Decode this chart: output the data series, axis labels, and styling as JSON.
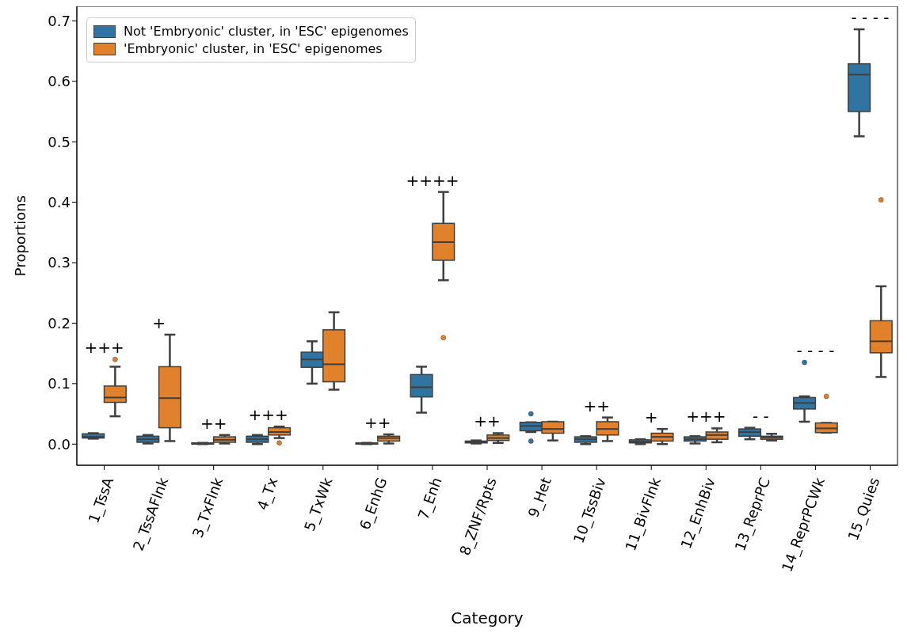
{
  "chart_data": {
    "type": "box",
    "xlabel": "Category",
    "ylabel": "Proportions",
    "categories": [
      "1_TssA",
      "2_TssAFlnk",
      "3_TxFlnk",
      "4_Tx",
      "5_TxWk",
      "6_EnhG",
      "7_Enh",
      "8_ZNF/Rpts",
      "9_Het",
      "10_TssBiv",
      "11_BivFlnk",
      "12_EnhBiv",
      "13_ReprPC",
      "14_ReprPCWk",
      "15_Quies"
    ],
    "ylim": [
      -0.035,
      0.724
    ],
    "yticks": [
      {
        "value": 0,
        "label": "0.0"
      },
      0.1,
      0.2,
      0.3,
      0.4,
      0.5,
      0.6,
      0.7
    ],
    "legend": "top left",
    "series": [
      {
        "name": "Not 'Embryonic' cluster, in 'ESC' epigenomes",
        "color": "#3274a1",
        "boxes": [
          {
            "low": 0.009,
            "q1": 0.01,
            "median": 0.012,
            "q3": 0.017,
            "high": 0.018
          },
          {
            "low": 0.001,
            "q1": 0.003,
            "median": 0.008,
            "q3": 0.013,
            "high": 0.015
          },
          {
            "low": 0.0,
            "q1": 0.0,
            "median": 0.001,
            "q3": 0.002,
            "high": 0.002
          },
          {
            "low": 0.0,
            "q1": 0.003,
            "median": 0.008,
            "q3": 0.013,
            "high": 0.015
          },
          {
            "low": 0.1,
            "q1": 0.127,
            "median": 0.14,
            "q3": 0.152,
            "high": 0.17
          },
          {
            "low": 0.0,
            "q1": 0.0,
            "median": 0.001,
            "q3": 0.002,
            "high": 0.002
          },
          {
            "low": 0.052,
            "q1": 0.078,
            "median": 0.094,
            "q3": 0.115,
            "high": 0.128
          },
          {
            "low": 0.001,
            "q1": 0.002,
            "median": 0.003,
            "q3": 0.005,
            "high": 0.006
          },
          {
            "low": 0.02,
            "q1": 0.022,
            "median": 0.03,
            "q3": 0.036,
            "high": 0.036,
            "outliers": [
              0.05,
              0.005
            ]
          },
          {
            "low": 0.0,
            "q1": 0.003,
            "median": 0.008,
            "q3": 0.012,
            "high": 0.013
          },
          {
            "low": 0.0,
            "q1": 0.002,
            "median": 0.004,
            "q3": 0.007,
            "high": 0.008
          },
          {
            "low": 0.001,
            "q1": 0.005,
            "median": 0.008,
            "q3": 0.012,
            "high": 0.013
          },
          {
            "low": 0.008,
            "q1": 0.013,
            "median": 0.02,
            "q3": 0.025,
            "high": 0.027
          },
          {
            "low": 0.037,
            "q1": 0.058,
            "median": 0.068,
            "q3": 0.077,
            "high": 0.079,
            "outliers": [
              0.135
            ]
          },
          {
            "low": 0.509,
            "q1": 0.55,
            "median": 0.611,
            "q3": 0.629,
            "high": 0.686
          }
        ]
      },
      {
        "name": "'Embryonic' cluster, in 'ESC' epigenomes",
        "color": "#e1812c",
        "boxes": [
          {
            "low": 0.046,
            "q1": 0.069,
            "median": 0.077,
            "q3": 0.096,
            "high": 0.128,
            "outliers": [
              0.14
            ]
          },
          {
            "low": 0.005,
            "q1": 0.027,
            "median": 0.076,
            "q3": 0.128,
            "high": 0.181
          },
          {
            "low": 0.001,
            "q1": 0.003,
            "median": 0.007,
            "q3": 0.012,
            "high": 0.015
          },
          {
            "low": 0.01,
            "q1": 0.015,
            "median": 0.02,
            "q3": 0.027,
            "high": 0.029,
            "outliers": [
              0.002
            ]
          },
          {
            "low": 0.09,
            "q1": 0.103,
            "median": 0.132,
            "q3": 0.189,
            "high": 0.218
          },
          {
            "low": 0.001,
            "q1": 0.005,
            "median": 0.01,
            "q3": 0.013,
            "high": 0.016
          },
          {
            "low": 0.271,
            "q1": 0.304,
            "median": 0.334,
            "q3": 0.365,
            "high": 0.417,
            "outliers": [
              0.176
            ]
          },
          {
            "low": 0.002,
            "q1": 0.006,
            "median": 0.01,
            "q3": 0.015,
            "high": 0.018
          },
          {
            "low": 0.006,
            "q1": 0.018,
            "median": 0.025,
            "q3": 0.037,
            "high": 0.037
          },
          {
            "low": 0.005,
            "q1": 0.015,
            "median": 0.025,
            "q3": 0.037,
            "high": 0.044
          },
          {
            "low": 0.0,
            "q1": 0.005,
            "median": 0.012,
            "q3": 0.018,
            "high": 0.025
          },
          {
            "low": 0.003,
            "q1": 0.008,
            "median": 0.015,
            "q3": 0.02,
            "high": 0.026
          },
          {
            "low": 0.006,
            "q1": 0.008,
            "median": 0.011,
            "q3": 0.013,
            "high": 0.017
          },
          {
            "low": 0.019,
            "q1": 0.019,
            "median": 0.026,
            "q3": 0.035,
            "high": 0.035,
            "outliers": [
              0.079
            ]
          },
          {
            "low": 0.111,
            "q1": 0.151,
            "median": 0.17,
            "q3": 0.204,
            "high": 0.261,
            "outliers": [
              0.404
            ]
          }
        ]
      }
    ],
    "annotations": [
      "+++",
      "+",
      "++",
      "+++",
      "++",
      "++++",
      "++",
      "++",
      "+",
      "+++",
      "- -",
      "- - - -",
      "- - - -"
    ]
  }
}
